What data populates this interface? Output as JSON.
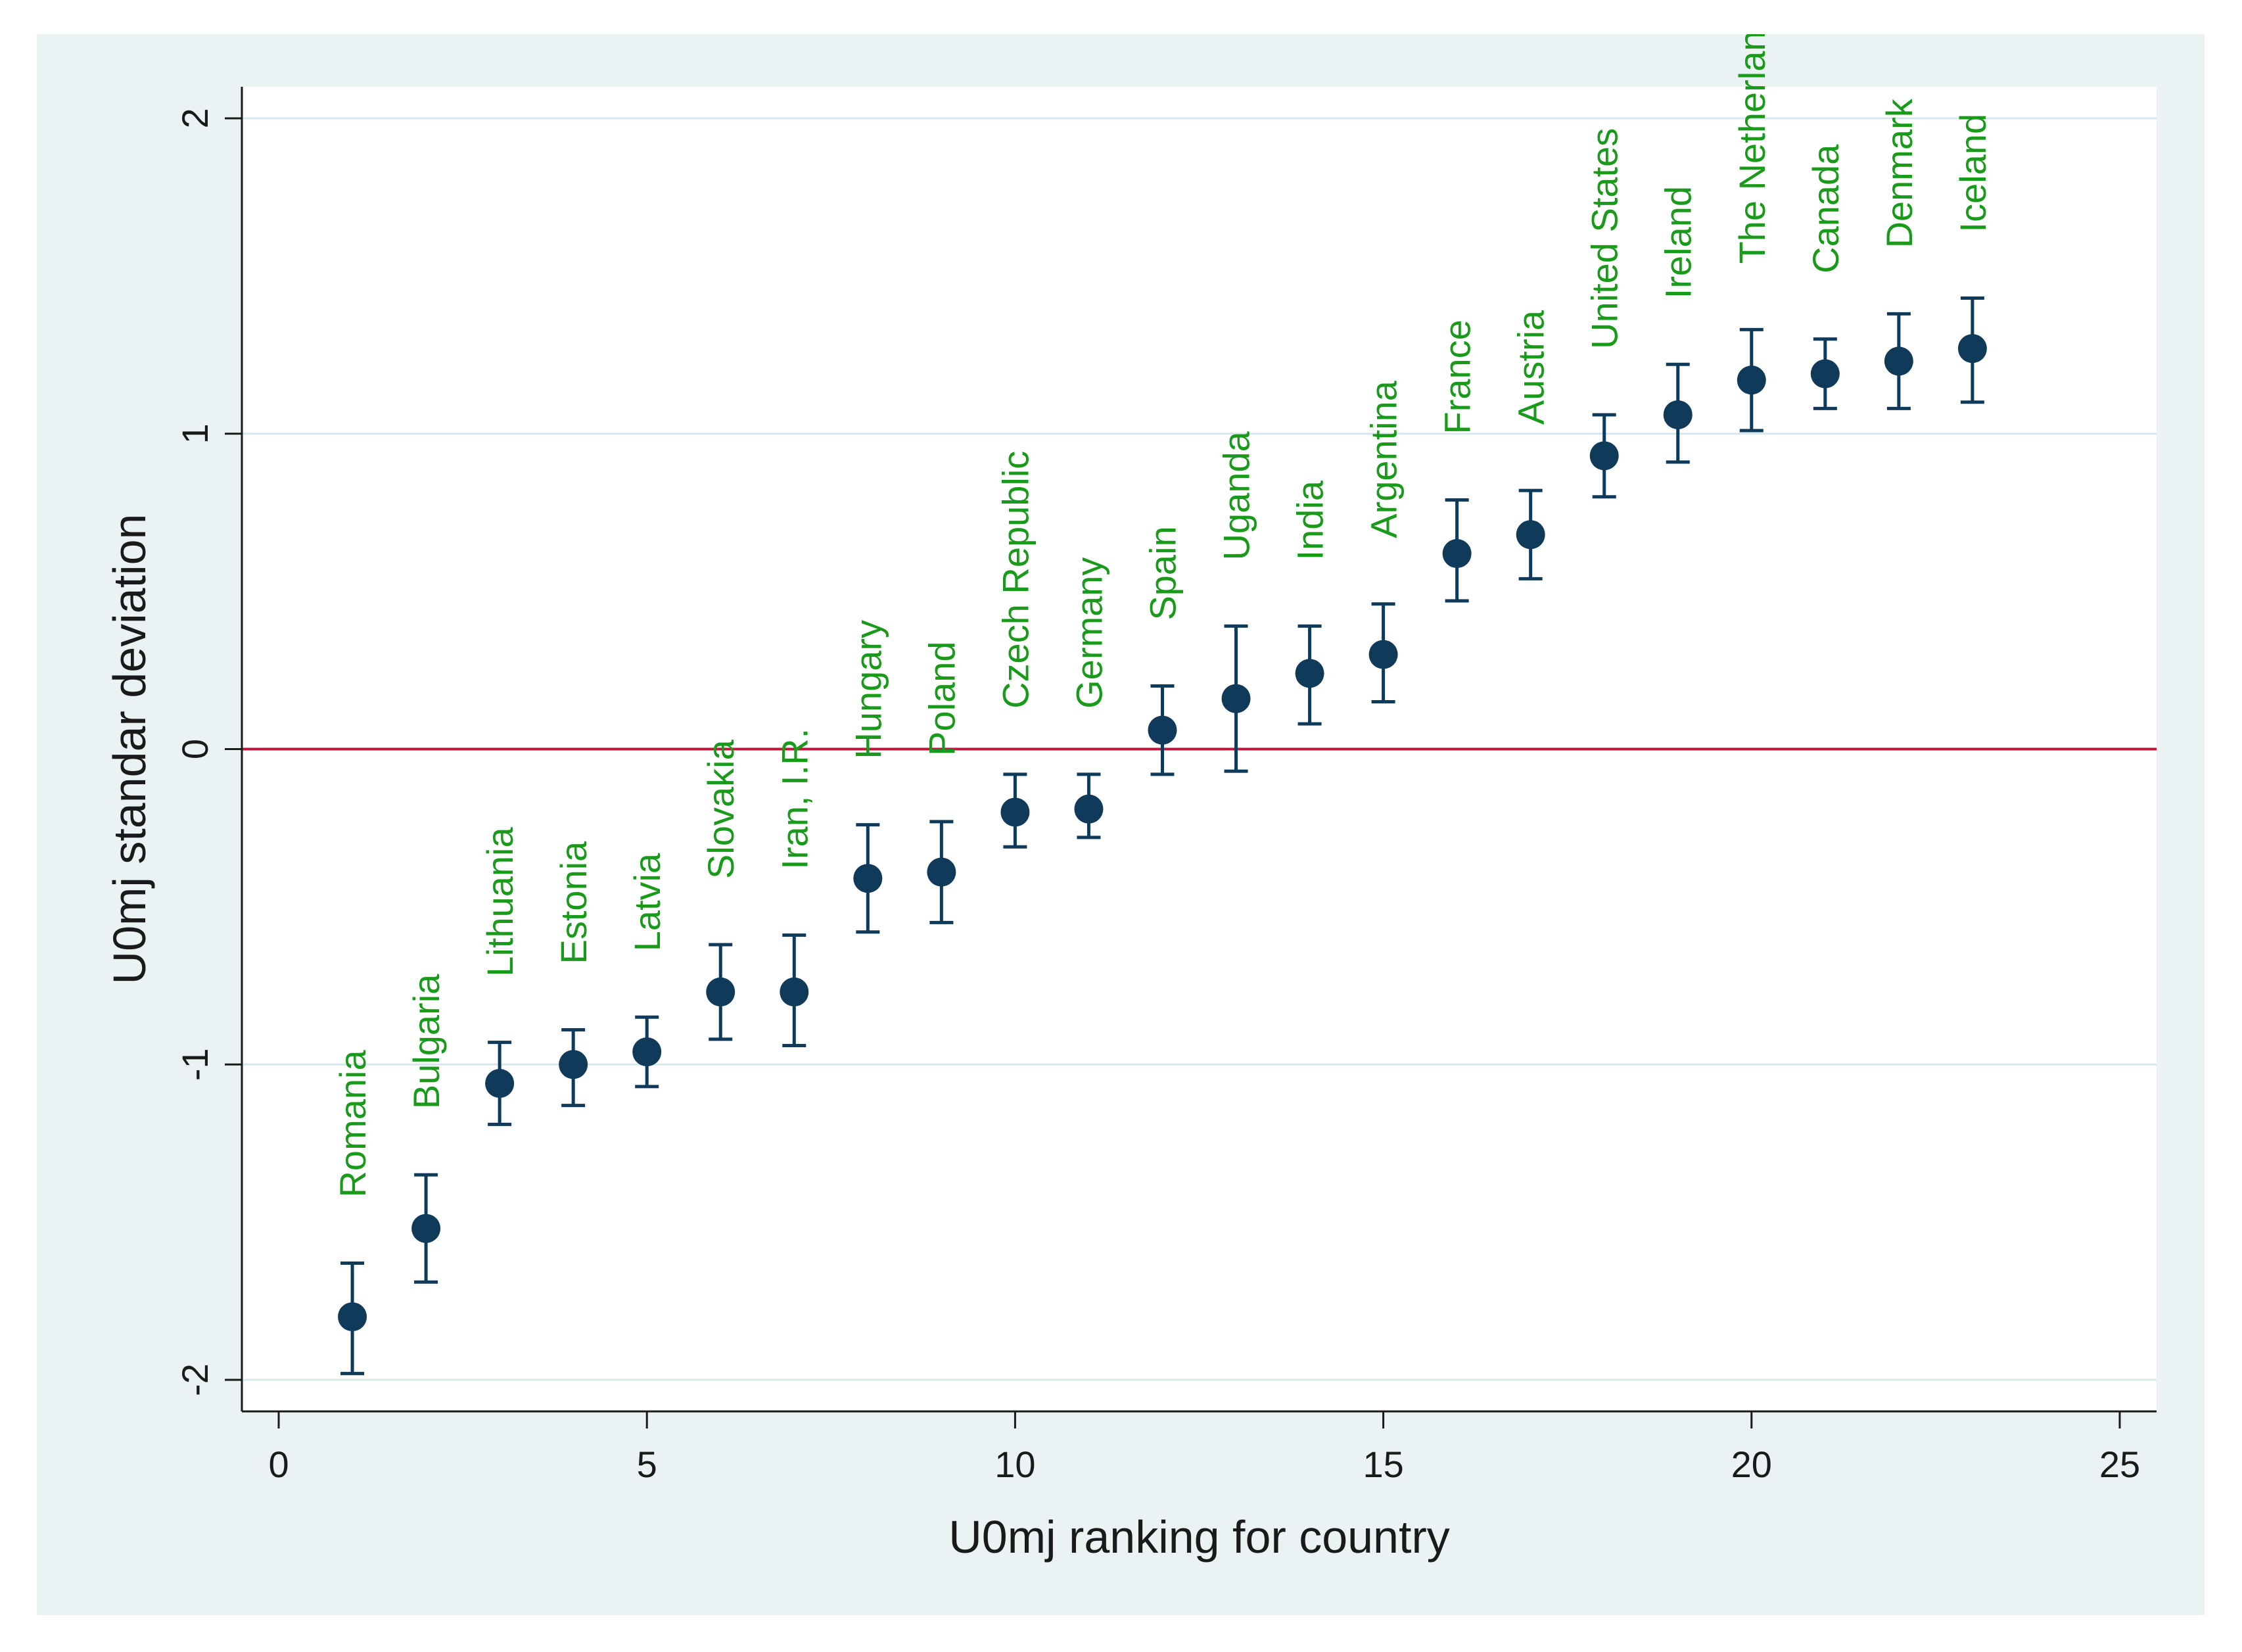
{
  "chart_data": {
    "type": "scatter",
    "title": "",
    "xlabel": "U0mj ranking for country",
    "ylabel": "U0mj standar deviation",
    "xlim": [
      -0.5,
      25.5
    ],
    "ylim": [
      -2.1,
      2.1
    ],
    "xticks": [
      0,
      5,
      10,
      15,
      20,
      25
    ],
    "yticks": [
      -2,
      -1,
      0,
      1,
      2
    ],
    "grid": "horizontal",
    "reference_line": {
      "y": 0,
      "color": "#c0143c"
    },
    "colors": {
      "marker": "#0f3a5a",
      "label": "#1a9a1a",
      "grid": "#d7e7ec",
      "plot_bg": "#ffffff",
      "frame_bg": "#eaf2f3"
    },
    "points": [
      {
        "rank": 1,
        "country": "Romania",
        "value": -1.8,
        "lower": -1.98,
        "upper": -1.63
      },
      {
        "rank": 2,
        "country": "Bulgaria",
        "value": -1.52,
        "lower": -1.69,
        "upper": -1.35
      },
      {
        "rank": 3,
        "country": "Lithuania",
        "value": -1.06,
        "lower": -1.19,
        "upper": -0.93
      },
      {
        "rank": 4,
        "country": "Estonia",
        "value": -1.0,
        "lower": -1.13,
        "upper": -0.89
      },
      {
        "rank": 5,
        "country": "Latvia",
        "value": -0.96,
        "lower": -1.07,
        "upper": -0.85
      },
      {
        "rank": 6,
        "country": "Slovakia",
        "value": -0.77,
        "lower": -0.92,
        "upper": -0.62
      },
      {
        "rank": 7,
        "country": "Iran, I.R.",
        "value": -0.77,
        "lower": -0.94,
        "upper": -0.59
      },
      {
        "rank": 8,
        "country": "Hungary",
        "value": -0.41,
        "lower": -0.58,
        "upper": -0.24
      },
      {
        "rank": 9,
        "country": "Poland",
        "value": -0.39,
        "lower": -0.55,
        "upper": -0.23
      },
      {
        "rank": 10,
        "country": "Czech Republic",
        "value": -0.2,
        "lower": -0.31,
        "upper": -0.08
      },
      {
        "rank": 11,
        "country": "Germany",
        "value": -0.19,
        "lower": -0.28,
        "upper": -0.08
      },
      {
        "rank": 12,
        "country": "Spain",
        "value": 0.06,
        "lower": -0.08,
        "upper": 0.2
      },
      {
        "rank": 13,
        "country": "Uganda",
        "value": 0.16,
        "lower": -0.07,
        "upper": 0.39
      },
      {
        "rank": 14,
        "country": "India",
        "value": 0.24,
        "lower": 0.08,
        "upper": 0.39
      },
      {
        "rank": 15,
        "country": "Argentina",
        "value": 0.3,
        "lower": 0.15,
        "upper": 0.46
      },
      {
        "rank": 16,
        "country": "France",
        "value": 0.62,
        "lower": 0.47,
        "upper": 0.79
      },
      {
        "rank": 17,
        "country": "Austria",
        "value": 0.68,
        "lower": 0.54,
        "upper": 0.82
      },
      {
        "rank": 18,
        "country": "United States",
        "value": 0.93,
        "lower": 0.8,
        "upper": 1.06
      },
      {
        "rank": 19,
        "country": "Ireland",
        "value": 1.06,
        "lower": 0.91,
        "upper": 1.22
      },
      {
        "rank": 20,
        "country": "The Netherland",
        "value": 1.17,
        "lower": 1.01,
        "upper": 1.33
      },
      {
        "rank": 21,
        "country": "Canada",
        "value": 1.19,
        "lower": 1.08,
        "upper": 1.3
      },
      {
        "rank": 22,
        "country": "Denmark",
        "value": 1.23,
        "lower": 1.08,
        "upper": 1.38
      },
      {
        "rank": 23,
        "country": "Iceland",
        "value": 1.27,
        "lower": 1.1,
        "upper": 1.43
      }
    ]
  }
}
